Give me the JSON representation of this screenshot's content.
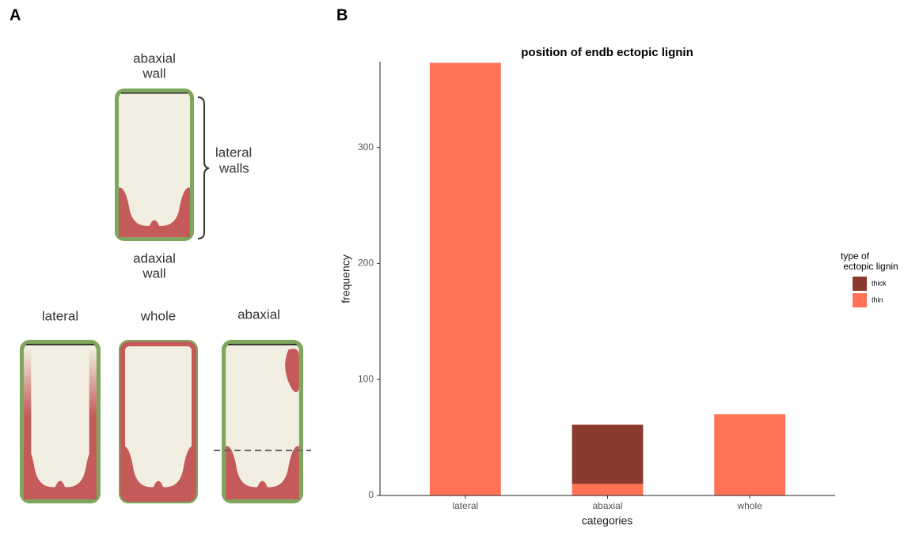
{
  "panels": {
    "a_label": "A",
    "b_label": "B",
    "diagram": {
      "top_label": [
        "abaxial",
        "wall"
      ],
      "side_label": [
        "lateral",
        "walls"
      ],
      "bottom_label": [
        "adaxial",
        "wall"
      ],
      "variants": [
        "lateral",
        "whole",
        "abaxial"
      ]
    }
  },
  "chart_data": {
    "type": "bar",
    "stacked": true,
    "title": "position of endb ectopic lignin",
    "x_label": "categories",
    "y_label": "frequency",
    "categories": [
      "lateral",
      "abaxial",
      "whole"
    ],
    "series": [
      {
        "name": "thick",
        "color": "#8b3a2e",
        "values": [
          0,
          51,
          0
        ]
      },
      {
        "name": "thin",
        "color": "#ff7256",
        "values": [
          373,
          10,
          70
        ]
      }
    ],
    "ylim": [
      0,
      374
    ],
    "yticks": [
      0,
      100,
      200,
      300
    ],
    "legend_title": [
      "type of",
      " ectopic lignin"
    ],
    "legend_position": "right"
  }
}
